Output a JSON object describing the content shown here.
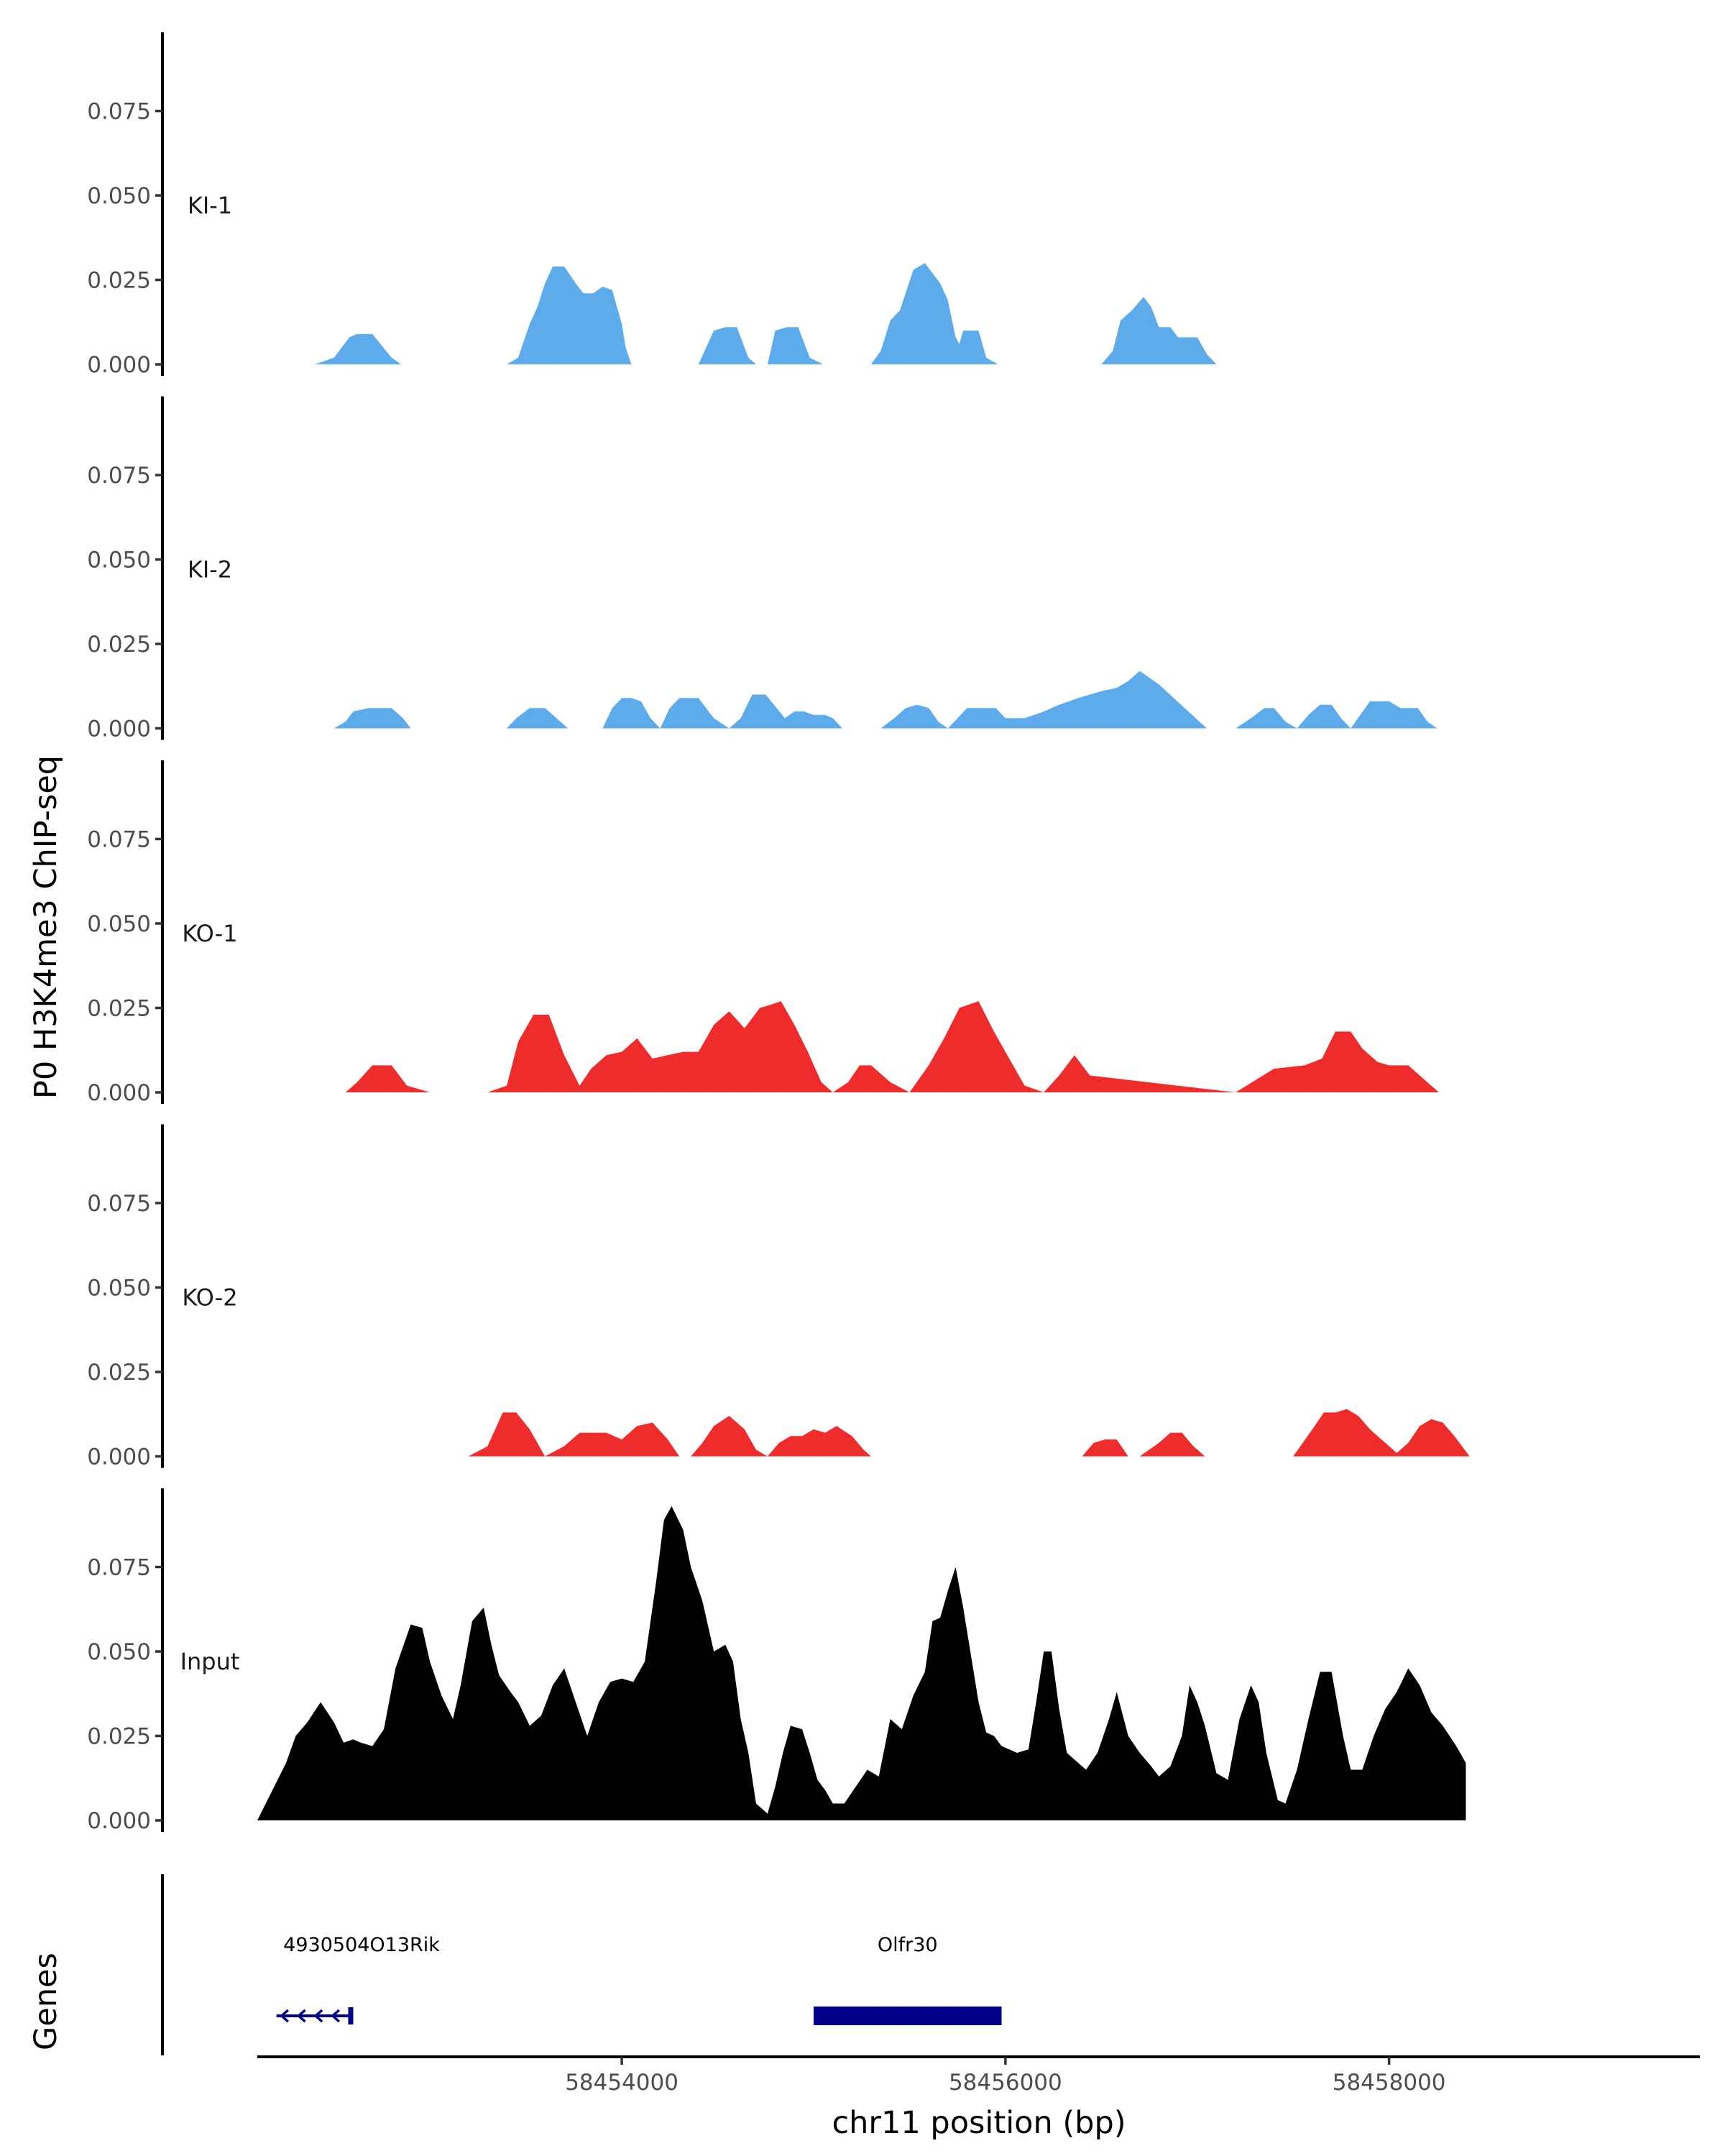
{
  "chart_data": {
    "type": "area",
    "ylabel": "P0 H3K4me3 ChIP-seq",
    "xlabel": "chr11 position (bp)",
    "xlim": [
      58452100,
      58459620
    ],
    "ylim": [
      -0.0025,
      0.1
    ],
    "y_ticks": [
      0.0,
      0.025,
      0.05,
      0.075
    ],
    "y_tick_labels": [
      "0.000",
      "0.025",
      "0.050",
      "0.075"
    ],
    "x_ticks": [
      58454000,
      58456000,
      58458000
    ],
    "x_tick_labels": [
      "58454000",
      "58456000",
      "58458000"
    ],
    "grid": false,
    "legend": "none",
    "tracks": [
      {
        "name": "KI-1",
        "color": "#5DABEA",
        "x": [
          58452100,
          58452250,
          58452400,
          58452500,
          58452580,
          58452620,
          58452700,
          58452800,
          58452850,
          58452900,
          58453100,
          58453300,
          58453400,
          58453460,
          58453520,
          58453560,
          58453600,
          58453640,
          58453700,
          58453760,
          58453800,
          58453850,
          58453900,
          58453950,
          58454000,
          58454020,
          58454050,
          58454100,
          58454300,
          58454400,
          58454480,
          58454540,
          58454600,
          58454660,
          58454700,
          58454730,
          58454760,
          58454800,
          58454860,
          58454920,
          58454980,
          58455050,
          58455080,
          58455100,
          58455200,
          58455300,
          58455350,
          58455400,
          58455450,
          58455520,
          58455580,
          58455620,
          58455660,
          58455700,
          58455740,
          58455760,
          58455780,
          58455800,
          58455830,
          58455860,
          58455900,
          58455960,
          58456000,
          58456050,
          58456100,
          58456300,
          58456400,
          58456500,
          58456560,
          58456600,
          58456660,
          58456720,
          58456760,
          58456800,
          58456860,
          58456900,
          58456960,
          58457000,
          58457050,
          58457100,
          58457200
        ],
        "y": [
          0,
          0,
          0,
          0.002,
          0.008,
          0.009,
          0.009,
          0.002,
          0,
          0,
          0,
          0,
          0,
          0.002,
          0.012,
          0.017,
          0.024,
          0.029,
          0.029,
          0.024,
          0.021,
          0.021,
          0.023,
          0.022,
          0.012,
          0.005,
          0,
          0,
          0,
          0,
          0.01,
          0.011,
          0.011,
          0.002,
          0,
          0,
          0,
          0.01,
          0.011,
          0.011,
          0.002,
          0,
          0,
          0,
          0,
          0,
          0.004,
          0.013,
          0.016,
          0.028,
          0.03,
          0.027,
          0.024,
          0.019,
          0.008,
          0.006,
          0.01,
          0.01,
          0.01,
          0.01,
          0.002,
          0,
          0,
          0,
          0,
          0,
          0,
          0,
          0.004,
          0.013,
          0.016,
          0.02,
          0.017,
          0.011,
          0.011,
          0.008,
          0.008,
          0.008,
          0.003,
          0,
          0
        ]
      },
      {
        "name": "KI-2",
        "color": "#5DABEA",
        "x": [
          58452100,
          58452250,
          58452300,
          58452400,
          58452500,
          58452560,
          58452600,
          58452680,
          58452800,
          58452860,
          58452900,
          58453150,
          58453300,
          58453400,
          58453450,
          58453520,
          58453600,
          58453680,
          58453720,
          58453800,
          58453900,
          58453950,
          58454000,
          58454050,
          58454100,
          58454150,
          58454200,
          58454250,
          58454300,
          58454400,
          58454480,
          58454560,
          58454620,
          58454680,
          58454750,
          58454850,
          58454900,
          58454950,
          58455000,
          58455060,
          58455100,
          58455150,
          58455200,
          58455300,
          58455350,
          58455420,
          58455480,
          58455540,
          58455600,
          58455650,
          58455700,
          58455800,
          58455880,
          58455950,
          58456000,
          58456100,
          58456200,
          58456280,
          58456380,
          58456440,
          58456500,
          58456580,
          58456640,
          58456700,
          58456800,
          58457050,
          58457200,
          58457280,
          58457350,
          58457400,
          58457460,
          58457520,
          58457580,
          58457640,
          58457700,
          58457750,
          58457800,
          58457850,
          58457900,
          58458000,
          58458060,
          58458100,
          58458150,
          58458200,
          58458250,
          58458300,
          58458350
        ],
        "y": [
          0,
          0,
          0,
          0,
          0,
          0.002,
          0.005,
          0.006,
          0.006,
          0.003,
          0,
          0,
          0,
          0,
          0.003,
          0.006,
          0.006,
          0.002,
          0,
          0,
          0,
          0.006,
          0.009,
          0.009,
          0.008,
          0.003,
          0,
          0.006,
          0.009,
          0.009,
          0.003,
          0,
          0.003,
          0.01,
          0.01,
          0.003,
          0.005,
          0.005,
          0.004,
          0.004,
          0.003,
          0,
          0,
          0,
          0,
          0.003,
          0.006,
          0.007,
          0.006,
          0.002,
          0,
          0.006,
          0.006,
          0.006,
          0.003,
          0.003,
          0.005,
          0.007,
          0.009,
          0.01,
          0.011,
          0.012,
          0.014,
          0.017,
          0.013,
          0,
          0,
          0.003,
          0.006,
          0.006,
          0.002,
          0,
          0.004,
          0.007,
          0.007,
          0.003,
          0,
          0.004,
          0.008,
          0.008,
          0.006,
          0.006,
          0.006,
          0.002,
          0,
          0,
          0
        ]
      },
      {
        "name": "KO-1",
        "color": "#EE2C2C",
        "x": [
          58452100,
          58452400,
          58452500,
          58452560,
          58452620,
          58452700,
          58452800,
          58452880,
          58453000,
          58453300,
          58453400,
          58453460,
          58453540,
          58453620,
          58453700,
          58453780,
          58453840,
          58453920,
          58454000,
          58454080,
          58454160,
          58454240,
          58454320,
          58454400,
          58454480,
          58454560,
          58454640,
          58454720,
          58454780,
          58454830,
          58454900,
          58454970,
          58455040,
          58455100,
          58455180,
          58455240,
          58455300,
          58455400,
          58455500,
          58455600,
          58455680,
          58455760,
          58455860,
          58455940,
          58456040,
          58456100,
          58456200,
          58456280,
          58456360,
          58456440,
          58457200,
          58457400,
          58457560,
          58457650,
          58457720,
          58457800,
          58457860,
          58457940,
          58458000,
          58458100,
          58458180,
          58458260,
          58458340,
          58458420,
          58458500
        ],
        "y": [
          0,
          0,
          0,
          0,
          0.003,
          0.008,
          0.008,
          0.002,
          0,
          0,
          0.002,
          0.015,
          0.023,
          0.023,
          0.011,
          0.002,
          0.007,
          0.011,
          0.012,
          0.016,
          0.01,
          0.011,
          0.012,
          0.012,
          0.02,
          0.024,
          0.019,
          0.025,
          0.026,
          0.027,
          0.02,
          0.012,
          0.003,
          0,
          0.003,
          0.008,
          0.008,
          0.003,
          0,
          0.008,
          0.016,
          0.025,
          0.027,
          0.018,
          0.008,
          0.002,
          0,
          0.005,
          0.011,
          0.005,
          0,
          0.007,
          0.008,
          0.01,
          0.018,
          0.018,
          0.013,
          0.009,
          0.008,
          0.008,
          0.004,
          0,
          0,
          0,
          0
        ]
      },
      {
        "name": "KO-2",
        "color": "#EE2C2C",
        "x": [
          58452100,
          58453200,
          58453300,
          58453380,
          58453450,
          58453520,
          58453600,
          58453700,
          58453780,
          58453860,
          58453920,
          58454000,
          58454080,
          58454160,
          58454240,
          58454300,
          58454360,
          58454420,
          58454480,
          58454560,
          58454640,
          58454700,
          58454760,
          58454820,
          58454880,
          58454940,
          58455000,
          58455060,
          58455120,
          58455200,
          58455260,
          58455300,
          58456400,
          58456460,
          58456520,
          58456580,
          58456640,
          58456700,
          58456800,
          58456860,
          58456920,
          58456980,
          58457040,
          58457100,
          58457500,
          58457600,
          58457660,
          58457720,
          58457780,
          58457840,
          58457900,
          58457960,
          58458040,
          58458100,
          58458160,
          58458220,
          58458280,
          58458340,
          58458420
        ],
        "y": [
          0,
          0,
          0.003,
          0.013,
          0.013,
          0.008,
          0,
          0.003,
          0.007,
          0.007,
          0.007,
          0.005,
          0.009,
          0.01,
          0.005,
          0,
          0,
          0.004,
          0.009,
          0.012,
          0.008,
          0.002,
          0,
          0.004,
          0.006,
          0.006,
          0.008,
          0.007,
          0.009,
          0.006,
          0.002,
          0,
          0,
          0.004,
          0.005,
          0.005,
          0,
          0,
          0.004,
          0.007,
          0.007,
          0.003,
          0,
          0,
          0,
          0.008,
          0.013,
          0.013,
          0.014,
          0.012,
          0.008,
          0.005,
          0.001,
          0.004,
          0.009,
          0.011,
          0.01,
          0.006,
          0
        ]
      },
      {
        "name": "Input",
        "color": "#000000",
        "x": [
          58452100,
          58452250,
          58452300,
          58452360,
          58452430,
          58452500,
          58452550,
          58452600,
          58452640,
          58452700,
          58452760,
          58452820,
          58452900,
          58452960,
          58453000,
          58453060,
          58453120,
          58453160,
          58453220,
          58453280,
          58453320,
          58453360,
          58453420,
          58453460,
          58453520,
          58453580,
          58453640,
          58453700,
          58453760,
          58453820,
          58453880,
          58453940,
          58454000,
          58454060,
          58454120,
          58454180,
          58454220,
          58454260,
          58454320,
          58454360,
          58454420,
          58454480,
          58454540,
          58454580,
          58454620,
          58454660,
          58454700,
          58454760,
          58454800,
          58454840,
          58454880,
          58454940,
          58454980,
          58455020,
          58455060,
          58455100,
          58455160,
          58455220,
          58455280,
          58455340,
          58455400,
          58455460,
          58455520,
          58455580,
          58455620,
          58455660,
          58455700,
          58455740,
          58455780,
          58455820,
          58455860,
          58455900,
          58455940,
          58455980,
          58456020,
          58456060,
          58456120,
          58456160,
          58456200,
          58456240,
          58456280,
          58456320,
          58456360,
          58456420,
          58456480,
          58456540,
          58456580,
          58456640,
          58456700,
          58456760,
          58456800,
          58456860,
          58456920,
          58456960,
          58457000,
          58457040,
          58457100,
          58457160,
          58457220,
          58457280,
          58457320,
          58457360,
          58457420,
          58457460,
          58457520,
          58457580,
          58457640,
          58457700,
          58457760,
          58457800,
          58457860,
          58457920,
          58457980,
          58458040,
          58458100,
          58458160,
          58458220,
          58458280,
          58458350,
          58458400
        ],
        "y": [
          0,
          0.017,
          0.025,
          0.029,
          0.035,
          0.029,
          0.023,
          0.024,
          0.023,
          0.022,
          0.027,
          0.045,
          0.058,
          0.057,
          0.047,
          0.037,
          0.03,
          0.04,
          0.059,
          0.063,
          0.052,
          0.043,
          0.038,
          0.035,
          0.028,
          0.031,
          0.04,
          0.045,
          0.035,
          0.025,
          0.035,
          0.041,
          0.042,
          0.041,
          0.047,
          0.071,
          0.089,
          0.093,
          0.086,
          0.075,
          0.065,
          0.05,
          0.052,
          0.047,
          0.03,
          0.02,
          0.005,
          0.002,
          0.01,
          0.02,
          0.028,
          0.027,
          0.02,
          0.012,
          0.009,
          0.005,
          0.005,
          0.01,
          0.015,
          0.013,
          0.03,
          0.027,
          0.037,
          0.044,
          0.059,
          0.06,
          0.068,
          0.075,
          0.063,
          0.049,
          0.035,
          0.026,
          0.025,
          0.022,
          0.021,
          0.02,
          0.021,
          0.035,
          0.05,
          0.05,
          0.033,
          0.02,
          0.018,
          0.015,
          0.02,
          0.03,
          0.038,
          0.025,
          0.02,
          0.016,
          0.013,
          0.016,
          0.025,
          0.04,
          0.035,
          0.028,
          0.014,
          0.012,
          0.03,
          0.04,
          0.035,
          0.02,
          0.006,
          0.005,
          0.015,
          0.03,
          0.044,
          0.044,
          0.025,
          0.015,
          0.015,
          0.025,
          0.033,
          0.038,
          0.045,
          0.04,
          0.032,
          0.028,
          0.022,
          0.017
        ]
      }
    ],
    "genes_track": {
      "ylabel": "Genes",
      "color": "#00008B",
      "genes": [
        {
          "name": "4930504O13Rik",
          "start": 58452200,
          "end": 58452600,
          "strand": "-"
        },
        {
          "name": "Olfr30",
          "start": 58455000,
          "end": 58455980,
          "strand": "+"
        }
      ]
    }
  }
}
